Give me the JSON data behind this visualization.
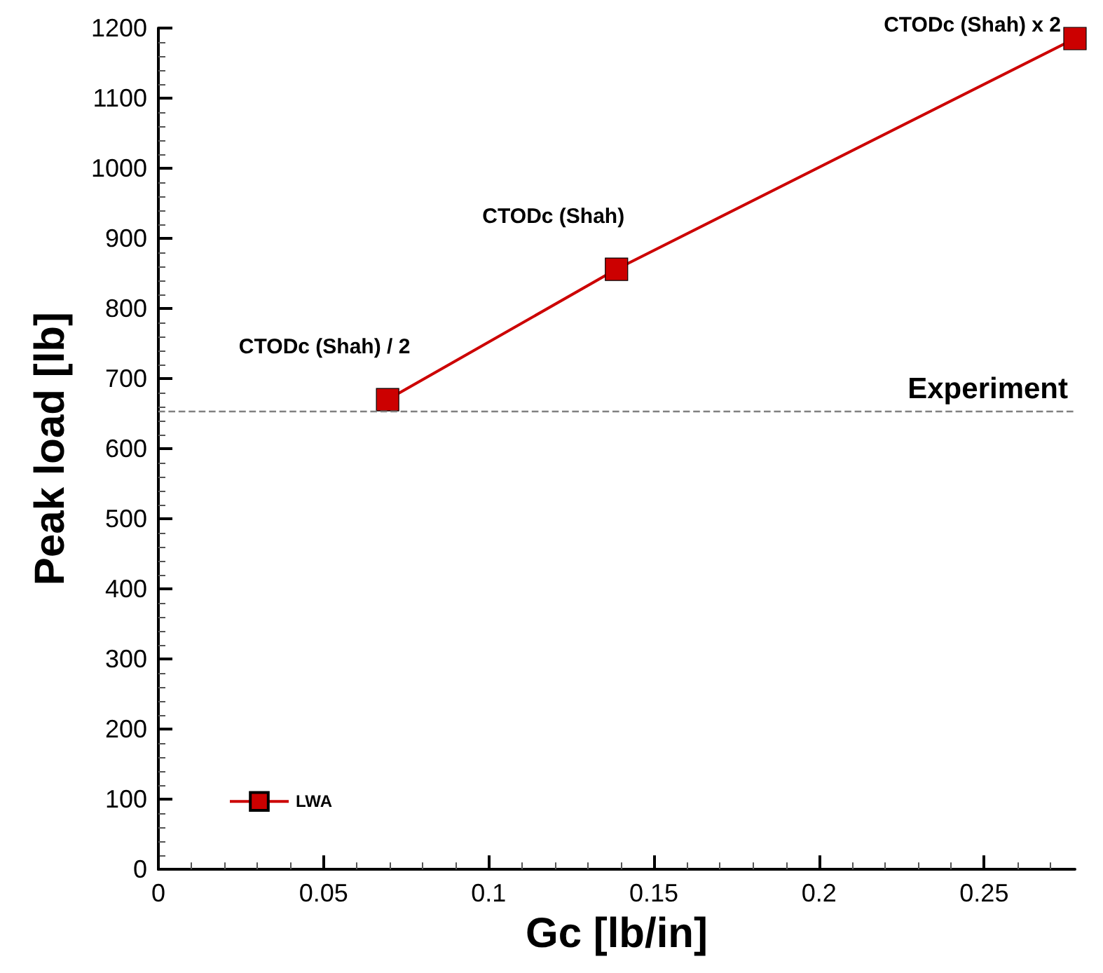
{
  "chart_data": {
    "type": "line",
    "xlabel": "Gc [lb/in]",
    "ylabel": "Peak load [lb]",
    "x": [
      0.0694,
      0.1387,
      0.2775
    ],
    "series": [
      {
        "name": "LWA",
        "color": "#cc0000",
        "values": [
          670,
          856,
          1185
        ]
      }
    ],
    "xlim": [
      0,
      0.2775
    ],
    "xticks": [
      0,
      0.05,
      0.1,
      0.15,
      0.2,
      0.25
    ],
    "ylim": [
      0,
      1200
    ],
    "yticks": [
      0,
      100,
      200,
      300,
      400,
      500,
      600,
      700,
      800,
      900,
      1000,
      1100,
      1200
    ],
    "ref_lines": [
      {
        "axis": "y",
        "value": 654,
        "label": "Experiment",
        "color": "#808080",
        "line_style": "dashed"
      }
    ],
    "annotations": [
      {
        "text": "CTODc (Shah) / 2",
        "x": 0.0694,
        "y": 670
      },
      {
        "text": "CTODc (Shah)",
        "x": 0.1387,
        "y": 856
      },
      {
        "text": "CTODc (Shah) x 2",
        "x": 0.2775,
        "y": 1185
      }
    ],
    "legend": "bottom left",
    "marker": "square",
    "line_style": "solid",
    "grid": false
  }
}
